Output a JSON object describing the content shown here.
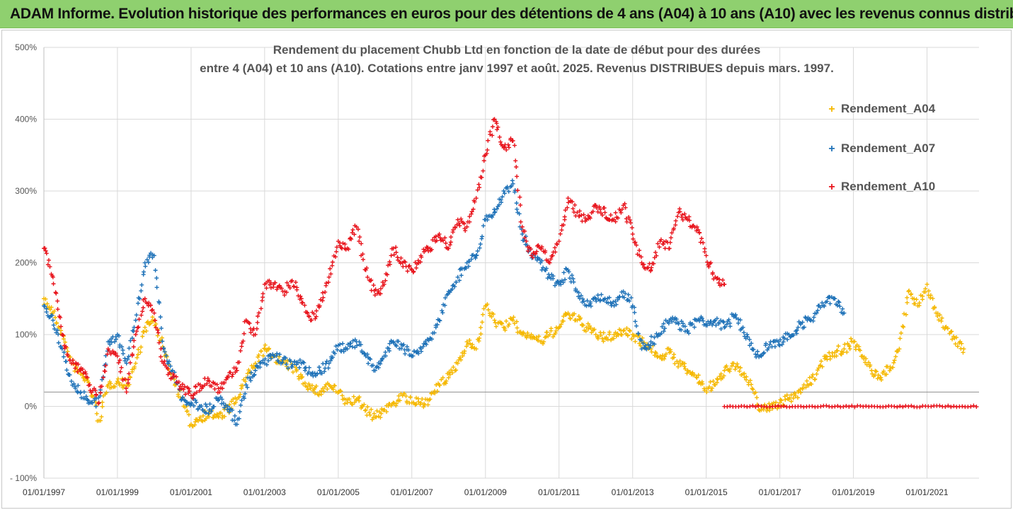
{
  "header": {
    "banner": "ADAM Informe. Evolution historique des performances en euros pour des détentions de 4 ans (A04) à 10 ans (A10) avec les revenus connus distribués"
  },
  "chart_data": {
    "type": "scatter",
    "title_line1": "Rendement du placement Chubb Ltd en fonction de la date de début pour des durées",
    "title_line2": "entre 4 (A04) et 10 ans (A10). Cotations entre janv 1997 et août. 2025. Revenus DISTRIBUES depuis mars. 1997.",
    "xlabel": "",
    "ylabel": "",
    "ylim": [
      -100,
      500
    ],
    "xlim": [
      "1997-01-01",
      "2022-06-01"
    ],
    "y_ticks": [
      "500%",
      "400%",
      "300%",
      "200%",
      "100%",
      "0%",
      "- 100%"
    ],
    "x_ticks": [
      "01/01/1997",
      "01/01/1999",
      "01/01/2001",
      "01/01/2003",
      "01/01/2005",
      "01/01/2007",
      "01/01/2009",
      "01/01/2011",
      "01/01/2013",
      "01/01/2015",
      "01/01/2017",
      "01/01/2019",
      "01/01/2021"
    ],
    "grid": true,
    "reference_line_y": 20,
    "legend_position": "top-right",
    "series": [
      {
        "name": "Rendement_A04",
        "color": "#f5b800",
        "points": [
          [
            "1997-01-01",
            150
          ],
          [
            "1997-04-01",
            130
          ],
          [
            "1997-07-01",
            100
          ],
          [
            "1997-10-01",
            60
          ],
          [
            "1998-01-01",
            45
          ],
          [
            "1998-04-01",
            30
          ],
          [
            "1998-07-01",
            -20
          ],
          [
            "1998-10-01",
            30
          ],
          [
            "1999-01-01",
            35
          ],
          [
            "1999-04-01",
            30
          ],
          [
            "1999-07-01",
            60
          ],
          [
            "1999-10-01",
            110
          ],
          [
            "2000-01-01",
            120
          ],
          [
            "2000-04-01",
            80
          ],
          [
            "2000-07-01",
            40
          ],
          [
            "2000-10-01",
            10
          ],
          [
            "2001-01-01",
            -25
          ],
          [
            "2001-04-01",
            -15
          ],
          [
            "2001-07-01",
            -10
          ],
          [
            "2001-10-01",
            -15
          ],
          [
            "2002-01-01",
            -5
          ],
          [
            "2002-04-01",
            10
          ],
          [
            "2002-07-01",
            40
          ],
          [
            "2002-10-01",
            60
          ],
          [
            "2003-01-01",
            80
          ],
          [
            "2003-04-01",
            70
          ],
          [
            "2003-07-01",
            60
          ],
          [
            "2003-10-01",
            55
          ],
          [
            "2004-01-01",
            40
          ],
          [
            "2004-04-01",
            25
          ],
          [
            "2004-07-01",
            20
          ],
          [
            "2004-10-01",
            30
          ],
          [
            "2005-01-01",
            20
          ],
          [
            "2005-04-01",
            5
          ],
          [
            "2005-07-01",
            10
          ],
          [
            "2005-10-01",
            -5
          ],
          [
            "2006-01-01",
            -15
          ],
          [
            "2006-04-01",
            -5
          ],
          [
            "2006-07-01",
            5
          ],
          [
            "2006-10-01",
            15
          ],
          [
            "2007-01-01",
            5
          ],
          [
            "2007-04-01",
            5
          ],
          [
            "2007-07-01",
            10
          ],
          [
            "2007-10-01",
            30
          ],
          [
            "2008-01-01",
            40
          ],
          [
            "2008-04-01",
            60
          ],
          [
            "2008-07-01",
            90
          ],
          [
            "2008-10-01",
            80
          ],
          [
            "2009-01-01",
            140
          ],
          [
            "2009-04-01",
            120
          ],
          [
            "2009-07-01",
            110
          ],
          [
            "2009-10-01",
            120
          ],
          [
            "2010-01-01",
            100
          ],
          [
            "2010-04-01",
            100
          ],
          [
            "2010-07-01",
            90
          ],
          [
            "2010-10-01",
            100
          ],
          [
            "2011-01-01",
            110
          ],
          [
            "2011-04-01",
            130
          ],
          [
            "2011-07-01",
            120
          ],
          [
            "2011-10-01",
            110
          ],
          [
            "2012-01-01",
            100
          ],
          [
            "2012-04-01",
            95
          ],
          [
            "2012-07-01",
            100
          ],
          [
            "2012-10-01",
            105
          ],
          [
            "2013-01-01",
            100
          ],
          [
            "2013-04-01",
            90
          ],
          [
            "2013-07-01",
            80
          ],
          [
            "2013-10-01",
            70
          ],
          [
            "2014-01-01",
            75
          ],
          [
            "2014-04-01",
            60
          ],
          [
            "2014-07-01",
            50
          ],
          [
            "2014-10-01",
            40
          ],
          [
            "2015-01-01",
            25
          ],
          [
            "2015-04-01",
            30
          ],
          [
            "2015-07-01",
            50
          ],
          [
            "2015-10-01",
            60
          ],
          [
            "2016-01-01",
            45
          ],
          [
            "2016-04-01",
            25
          ],
          [
            "2016-07-01",
            -5
          ],
          [
            "2016-10-01",
            0
          ],
          [
            "2017-01-01",
            5
          ],
          [
            "2017-04-01",
            10
          ],
          [
            "2017-07-01",
            20
          ],
          [
            "2017-10-01",
            30
          ],
          [
            "2018-01-01",
            45
          ],
          [
            "2018-04-01",
            70
          ],
          [
            "2018-07-01",
            75
          ],
          [
            "2018-10-01",
            80
          ],
          [
            "2019-01-01",
            90
          ],
          [
            "2019-04-01",
            70
          ],
          [
            "2019-07-01",
            50
          ],
          [
            "2019-10-01",
            40
          ],
          [
            "2020-01-01",
            55
          ],
          [
            "2020-04-01",
            80
          ],
          [
            "2020-07-01",
            160
          ],
          [
            "2020-10-01",
            140
          ],
          [
            "2021-01-01",
            170
          ],
          [
            "2021-04-01",
            130
          ],
          [
            "2021-07-01",
            110
          ],
          [
            "2021-10-01",
            95
          ],
          [
            "2022-01-01",
            80
          ]
        ]
      },
      {
        "name": "Rendement_A07",
        "color": "#1f72b8",
        "points": [
          [
            "1997-01-01",
            140
          ],
          [
            "1997-04-01",
            120
          ],
          [
            "1997-07-01",
            80
          ],
          [
            "1997-10-01",
            35
          ],
          [
            "1998-01-01",
            20
          ],
          [
            "1998-04-01",
            5
          ],
          [
            "1998-07-01",
            5
          ],
          [
            "1998-10-01",
            90
          ],
          [
            "1999-01-01",
            100
          ],
          [
            "1999-04-01",
            60
          ],
          [
            "1999-07-01",
            120
          ],
          [
            "1999-10-01",
            200
          ],
          [
            "2000-01-01",
            210
          ],
          [
            "2000-04-01",
            80
          ],
          [
            "2000-07-01",
            50
          ],
          [
            "2000-10-01",
            10
          ],
          [
            "2001-01-01",
            5
          ],
          [
            "2001-04-01",
            0
          ],
          [
            "2001-07-01",
            -5
          ],
          [
            "2001-10-01",
            10
          ],
          [
            "2002-01-01",
            0
          ],
          [
            "2002-04-01",
            -25
          ],
          [
            "2002-07-01",
            30
          ],
          [
            "2002-10-01",
            50
          ],
          [
            "2003-01-01",
            60
          ],
          [
            "2003-04-01",
            70
          ],
          [
            "2003-07-01",
            65
          ],
          [
            "2003-10-01",
            55
          ],
          [
            "2004-01-01",
            60
          ],
          [
            "2004-04-01",
            45
          ],
          [
            "2004-07-01",
            50
          ],
          [
            "2004-10-01",
            60
          ],
          [
            "2005-01-01",
            85
          ],
          [
            "2005-04-01",
            80
          ],
          [
            "2005-07-01",
            90
          ],
          [
            "2005-10-01",
            70
          ],
          [
            "2006-01-01",
            50
          ],
          [
            "2006-04-01",
            70
          ],
          [
            "2006-07-01",
            90
          ],
          [
            "2006-10-01",
            85
          ],
          [
            "2007-01-01",
            70
          ],
          [
            "2007-04-01",
            80
          ],
          [
            "2007-07-01",
            95
          ],
          [
            "2007-10-01",
            120
          ],
          [
            "2008-01-01",
            160
          ],
          [
            "2008-04-01",
            180
          ],
          [
            "2008-07-01",
            200
          ],
          [
            "2008-10-01",
            210
          ],
          [
            "2009-01-01",
            260
          ],
          [
            "2009-04-01",
            270
          ],
          [
            "2009-07-01",
            300
          ],
          [
            "2009-10-01",
            310
          ],
          [
            "2010-01-01",
            240
          ],
          [
            "2010-04-01",
            210
          ],
          [
            "2010-07-01",
            200
          ],
          [
            "2010-10-01",
            180
          ],
          [
            "2011-01-01",
            170
          ],
          [
            "2011-04-01",
            190
          ],
          [
            "2011-07-01",
            160
          ],
          [
            "2011-10-01",
            140
          ],
          [
            "2012-01-01",
            150
          ],
          [
            "2012-04-01",
            150
          ],
          [
            "2012-07-01",
            140
          ],
          [
            "2012-10-01",
            160
          ],
          [
            "2013-01-01",
            140
          ],
          [
            "2013-04-01",
            80
          ],
          [
            "2013-07-01",
            90
          ],
          [
            "2013-10-01",
            100
          ],
          [
            "2014-01-01",
            120
          ],
          [
            "2014-04-01",
            115
          ],
          [
            "2014-07-01",
            105
          ],
          [
            "2014-10-01",
            120
          ],
          [
            "2015-01-01",
            115
          ],
          [
            "2015-04-01",
            120
          ],
          [
            "2015-07-01",
            110
          ],
          [
            "2015-10-01",
            125
          ],
          [
            "2016-01-01",
            110
          ],
          [
            "2016-04-01",
            80
          ],
          [
            "2016-07-01",
            70
          ],
          [
            "2016-10-01",
            90
          ],
          [
            "2017-01-01",
            85
          ],
          [
            "2017-04-01",
            100
          ],
          [
            "2017-07-01",
            110
          ],
          [
            "2017-10-01",
            120
          ],
          [
            "2018-01-01",
            130
          ],
          [
            "2018-04-01",
            145
          ],
          [
            "2018-07-01",
            150
          ],
          [
            "2018-10-01",
            130
          ]
        ]
      },
      {
        "name": "Rendement_A10",
        "color": "#e8141c",
        "points": [
          [
            "1997-01-01",
            220
          ],
          [
            "1997-04-01",
            180
          ],
          [
            "1997-07-01",
            100
          ],
          [
            "1997-10-01",
            60
          ],
          [
            "1998-01-01",
            50
          ],
          [
            "1998-04-01",
            30
          ],
          [
            "1998-07-01",
            5
          ],
          [
            "1998-10-01",
            80
          ],
          [
            "1999-01-01",
            70
          ],
          [
            "1999-04-01",
            20
          ],
          [
            "1999-07-01",
            100
          ],
          [
            "1999-10-01",
            150
          ],
          [
            "2000-01-01",
            130
          ],
          [
            "2000-04-01",
            60
          ],
          [
            "2000-07-01",
            40
          ],
          [
            "2000-10-01",
            25
          ],
          [
            "2001-01-01",
            15
          ],
          [
            "2001-04-01",
            30
          ],
          [
            "2001-07-01",
            35
          ],
          [
            "2001-10-01",
            25
          ],
          [
            "2002-01-01",
            40
          ],
          [
            "2002-04-01",
            50
          ],
          [
            "2002-07-01",
            120
          ],
          [
            "2002-10-01",
            100
          ],
          [
            "2003-01-01",
            170
          ],
          [
            "2003-04-01",
            170
          ],
          [
            "2003-07-01",
            160
          ],
          [
            "2003-10-01",
            175
          ],
          [
            "2004-01-01",
            150
          ],
          [
            "2004-04-01",
            120
          ],
          [
            "2004-07-01",
            140
          ],
          [
            "2004-10-01",
            180
          ],
          [
            "2005-01-01",
            230
          ],
          [
            "2005-04-01",
            220
          ],
          [
            "2005-07-01",
            250
          ],
          [
            "2005-10-01",
            190
          ],
          [
            "2006-01-01",
            155
          ],
          [
            "2006-04-01",
            170
          ],
          [
            "2006-07-01",
            220
          ],
          [
            "2006-10-01",
            200
          ],
          [
            "2007-01-01",
            190
          ],
          [
            "2007-04-01",
            210
          ],
          [
            "2007-07-01",
            220
          ],
          [
            "2007-10-01",
            240
          ],
          [
            "2008-01-01",
            220
          ],
          [
            "2008-04-01",
            260
          ],
          [
            "2008-07-01",
            250
          ],
          [
            "2008-10-01",
            290
          ],
          [
            "2009-01-01",
            350
          ],
          [
            "2009-04-01",
            400
          ],
          [
            "2009-07-01",
            360
          ],
          [
            "2009-10-01",
            370
          ],
          [
            "2010-01-01",
            250
          ],
          [
            "2010-04-01",
            210
          ],
          [
            "2010-07-01",
            220
          ],
          [
            "2010-10-01",
            200
          ],
          [
            "2011-01-01",
            230
          ],
          [
            "2011-04-01",
            290
          ],
          [
            "2011-07-01",
            270
          ],
          [
            "2011-10-01",
            260
          ],
          [
            "2012-01-01",
            280
          ],
          [
            "2012-04-01",
            270
          ],
          [
            "2012-07-01",
            260
          ],
          [
            "2012-10-01",
            280
          ],
          [
            "2013-01-01",
            240
          ],
          [
            "2013-04-01",
            200
          ],
          [
            "2013-07-01",
            190
          ],
          [
            "2013-10-01",
            230
          ],
          [
            "2014-01-01",
            220
          ],
          [
            "2014-04-01",
            270
          ],
          [
            "2014-07-01",
            260
          ],
          [
            "2014-10-01",
            250
          ],
          [
            "2015-01-01",
            210
          ],
          [
            "2015-04-01",
            180
          ],
          [
            "2015-07-01",
            170
          ]
        ],
        "flat_segment": {
          "from": "2015-07-01",
          "to": "2022-06-01",
          "value": 0
        }
      }
    ]
  }
}
